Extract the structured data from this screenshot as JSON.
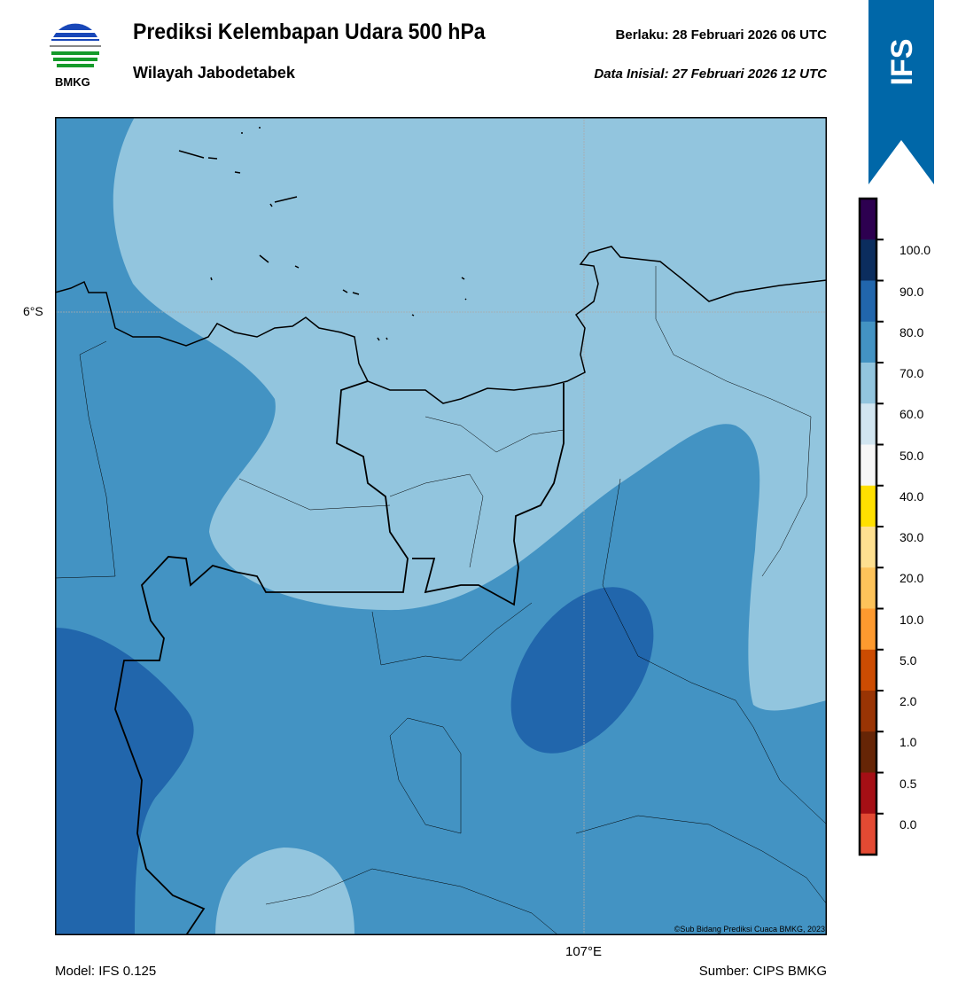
{
  "header": {
    "title": "Prediksi Kelembapan Udara 500 hPa",
    "region": "Wilayah Jabodetabek",
    "valid": "Berlaku:  28 Februari 2026 06 UTC",
    "initial": "Data Inisial:  27 Februari 2026 12 UTC",
    "logo_text": "BMKG",
    "model_badge": "IFS"
  },
  "map": {
    "lat_label": "6°S",
    "lon_label": "107°E",
    "credit": "©Sub Bidang Prediksi Cuaca BMKG, 2023",
    "field_colors": {
      "60-70": "#92c5de",
      "70-80": "#4393c3",
      "80-90": "#2166ac"
    }
  },
  "colorbar": {
    "colors": [
      "#2d0050",
      "#0b2d5e",
      "#2166ac",
      "#4393c3",
      "#92c5de",
      "#d1e5f0",
      "#f7f7f7",
      "#ffe000",
      "#fee090",
      "#fdc35a",
      "#fd9a2f",
      "#cc4c02",
      "#993404",
      "#662506",
      "#a50f15",
      "#e34a33"
    ],
    "labels": [
      "100.0",
      "90.0",
      "80.0",
      "70.0",
      "60.0",
      "50.0",
      "40.0",
      "30.0",
      "20.0",
      "10.0",
      "5.0",
      "2.0",
      "1.0",
      "0.5",
      "0.0"
    ]
  },
  "footer": {
    "model": "Model: IFS 0.125",
    "source": "Sumber: CIPS BMKG"
  }
}
